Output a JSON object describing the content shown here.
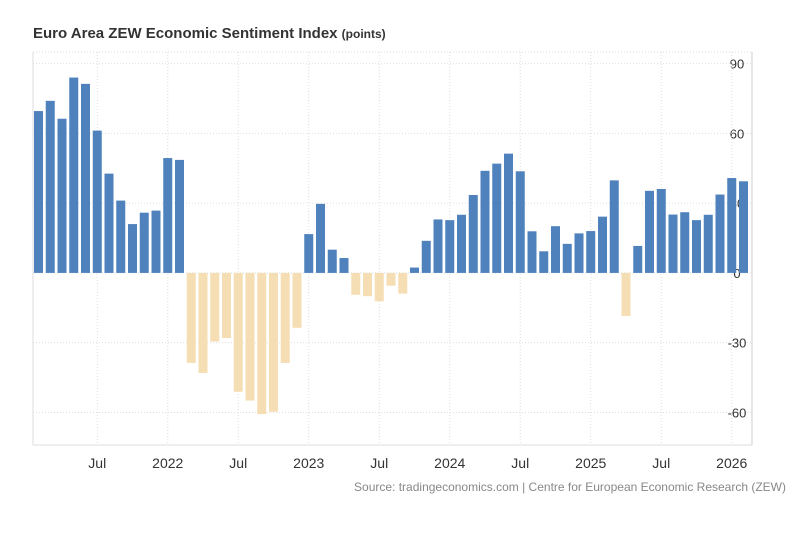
{
  "title": "Euro Area ZEW Economic Sentiment Index",
  "unit": "(points)",
  "source": "Source: tradingeconomics.com | Centre for European Economic Research (ZEW)",
  "chart_data": {
    "type": "bar",
    "title": "Euro Area ZEW Economic Sentiment Index",
    "ylabel": "(points)",
    "ylim": [
      -74,
      95
    ],
    "yticks": [
      90,
      60,
      30,
      0,
      -30,
      -60
    ],
    "grid": true,
    "positive_color": "#4f81bd",
    "negative_color": "#f5deb3",
    "xtick_labels": [
      {
        "index": 5,
        "label": "Jul"
      },
      {
        "index": 11,
        "label": "2022"
      },
      {
        "index": 17,
        "label": "Jul"
      },
      {
        "index": 23,
        "label": "2023"
      },
      {
        "index": 29,
        "label": "Jul"
      },
      {
        "index": 35,
        "label": "2024"
      },
      {
        "index": 41,
        "label": "Jul"
      },
      {
        "index": 47,
        "label": "2025"
      },
      {
        "index": 53,
        "label": "Jul"
      },
      {
        "index": 59,
        "label": "2026"
      }
    ],
    "categories": [
      "2021-02",
      "2021-03",
      "2021-04",
      "2021-05",
      "2021-06",
      "2021-07",
      "2021-08",
      "2021-09",
      "2021-10",
      "2021-11",
      "2021-12",
      "2022-01",
      "2022-02",
      "2022-03",
      "2022-04",
      "2022-05",
      "2022-06",
      "2022-07",
      "2022-08",
      "2022-09",
      "2022-10",
      "2022-11",
      "2022-12",
      "2023-01",
      "2023-02",
      "2023-03",
      "2023-04",
      "2023-05",
      "2023-06",
      "2023-07",
      "2023-08",
      "2023-09",
      "2023-10",
      "2023-11",
      "2023-12",
      "2024-01",
      "2024-02",
      "2024-03",
      "2024-04",
      "2024-05",
      "2024-06",
      "2024-07",
      "2024-08",
      "2024-09",
      "2024-10",
      "2024-11",
      "2024-12",
      "2025-01",
      "2025-02",
      "2025-03",
      "2025-04",
      "2025-05",
      "2025-06",
      "2025-07",
      "2025-08",
      "2025-09",
      "2025-10",
      "2025-11",
      "2025-12",
      "2026-01",
      "2026-02"
    ],
    "values": [
      69.6,
      74.0,
      66.3,
      84.0,
      81.3,
      61.2,
      42.7,
      31.1,
      21.0,
      25.9,
      26.8,
      49.4,
      48.6,
      -38.7,
      -43.0,
      -29.5,
      -28.0,
      -51.1,
      -54.9,
      -60.7,
      -59.7,
      -38.7,
      -23.6,
      16.7,
      29.7,
      10.0,
      6.4,
      -9.4,
      -10.0,
      -12.2,
      -5.5,
      -8.9,
      2.3,
      13.8,
      23.0,
      22.7,
      25.0,
      33.5,
      43.9,
      47.0,
      51.3,
      43.7,
      17.9,
      9.3,
      20.1,
      12.5,
      17.0,
      18.0,
      24.2,
      39.8,
      -18.5,
      11.6,
      35.3,
      36.1,
      25.1,
      26.1,
      22.7,
      25.0,
      33.7,
      40.8,
      39.4
    ]
  }
}
